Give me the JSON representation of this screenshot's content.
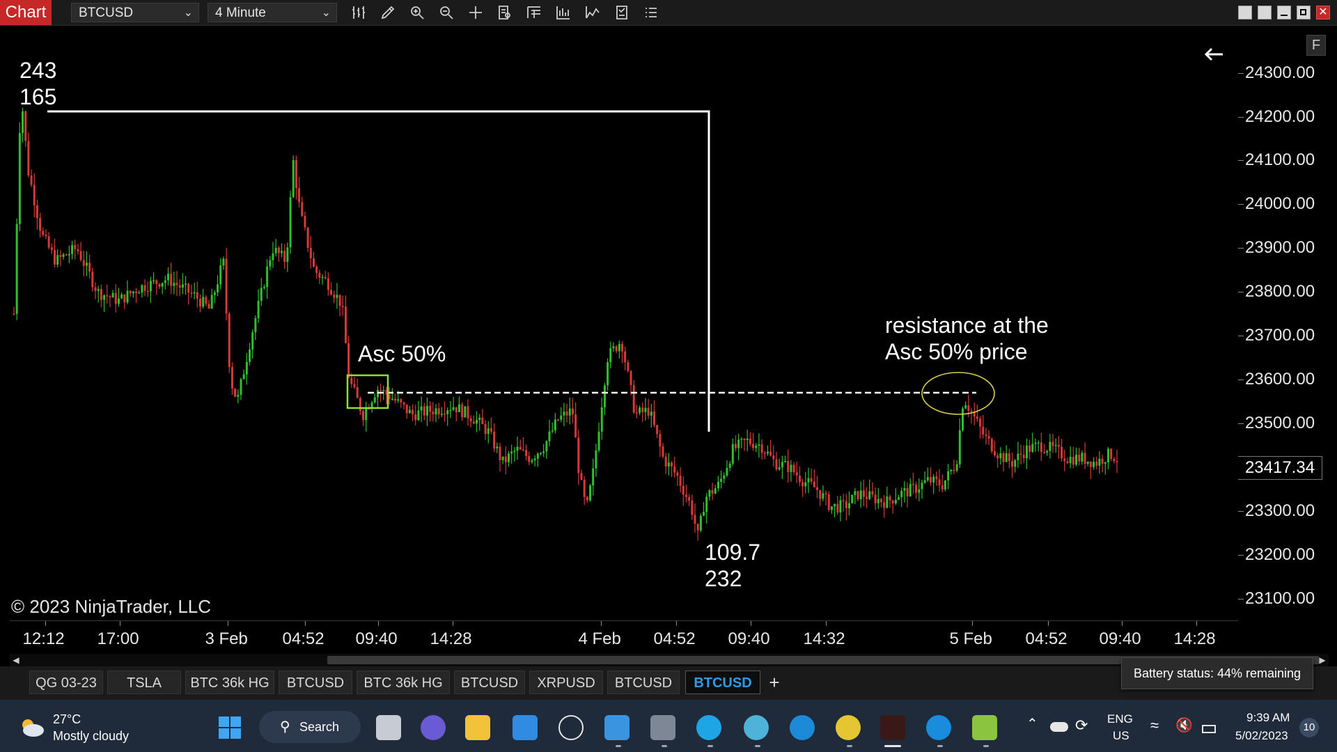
{
  "toolbar": {
    "chart_tab": "Chart",
    "instrument": "BTCUSD",
    "interval": "4 Minute",
    "tools": [
      "bar-type-icon",
      "drawing-tools-icon",
      "zoom-in-icon",
      "zoom-out-icon",
      "crosshair-icon",
      "data-box-icon",
      "chart-trader-icon",
      "indicators-icon",
      "strategies-icon",
      "properties-icon",
      "list-icon"
    ]
  },
  "chart": {
    "watermark": "© 2023 NinjaTrader, LLC",
    "annotations": {
      "top_left_1": "243",
      "top_left_2": "165",
      "asc_label": "Asc 50%",
      "low_1": "109.7",
      "low_2": "232",
      "resistance_1": "resistance at the",
      "resistance_2": "Asc 50% price"
    },
    "current_price": "23417.34",
    "badge": "F",
    "colors": {
      "candle_up": "#2fbf2f",
      "candle_down": "#d43a3a",
      "box": "#8fe030",
      "ellipse": "#d9d248",
      "lines": "#ffffff"
    }
  },
  "chart_data": {
    "type": "candlestick",
    "instrument": "BTCUSD",
    "interval": "4 Minute",
    "price_ticks": [
      "24300.00",
      "24200.00",
      "24100.00",
      "24000.00",
      "23900.00",
      "23800.00",
      "23700.00",
      "23600.00",
      "23500.00",
      "23400.00",
      "23300.00",
      "23200.00",
      "23100.00"
    ],
    "time_ticks": [
      "12:12",
      "17:00",
      "3 Feb",
      "04:52",
      "09:40",
      "14:28",
      "4 Feb",
      "04:52",
      "09:40",
      "14:32",
      "5 Feb",
      "04:52",
      "09:40",
      "14:28"
    ],
    "ylim": [
      23050,
      24390
    ],
    "close_path": [
      [
        0,
        23750
      ],
      [
        1,
        24260
      ],
      [
        2,
        24080
      ],
      [
        4,
        23930
      ],
      [
        6,
        23870
      ],
      [
        9,
        23900
      ],
      [
        12,
        23800
      ],
      [
        15,
        23780
      ],
      [
        18,
        23810
      ],
      [
        22,
        23830
      ],
      [
        26,
        23790
      ],
      [
        28,
        23760
      ],
      [
        30,
        23870
      ],
      [
        31,
        23600
      ],
      [
        32,
        23550
      ],
      [
        34,
        23700
      ],
      [
        37,
        23900
      ],
      [
        39,
        23870
      ],
      [
        40,
        24100
      ],
      [
        41,
        23980
      ],
      [
        43,
        23850
      ],
      [
        45,
        23820
      ],
      [
        47,
        23770
      ],
      [
        48,
        23600
      ],
      [
        50,
        23520
      ],
      [
        52,
        23580
      ],
      [
        54,
        23560
      ],
      [
        57,
        23520
      ],
      [
        60,
        23530
      ],
      [
        63,
        23540
      ],
      [
        66,
        23510
      ],
      [
        68,
        23480
      ],
      [
        70,
        23410
      ],
      [
        72,
        23440
      ],
      [
        74,
        23420
      ],
      [
        76,
        23450
      ],
      [
        78,
        23510
      ],
      [
        80,
        23530
      ],
      [
        81,
        23380
      ],
      [
        82,
        23300
      ],
      [
        83,
        23390
      ],
      [
        85,
        23650
      ],
      [
        87,
        23690
      ],
      [
        89,
        23520
      ],
      [
        91,
        23530
      ],
      [
        93,
        23420
      ],
      [
        95,
        23380
      ],
      [
        97,
        23310
      ],
      [
        98,
        23240
      ],
      [
        99,
        23330
      ],
      [
        101,
        23360
      ],
      [
        103,
        23440
      ],
      [
        105,
        23460
      ],
      [
        107,
        23450
      ],
      [
        109,
        23410
      ],
      [
        111,
        23400
      ],
      [
        113,
        23370
      ],
      [
        115,
        23350
      ],
      [
        117,
        23310
      ],
      [
        119,
        23310
      ],
      [
        121,
        23340
      ],
      [
        123,
        23330
      ],
      [
        125,
        23320
      ],
      [
        127,
        23340
      ],
      [
        129,
        23350
      ],
      [
        131,
        23370
      ],
      [
        133,
        23360
      ],
      [
        135,
        23410
      ],
      [
        136,
        23560
      ],
      [
        137,
        23530
      ],
      [
        139,
        23470
      ],
      [
        141,
        23430
      ],
      [
        143,
        23410
      ],
      [
        145,
        23440
      ],
      [
        147,
        23450
      ],
      [
        149,
        23440
      ],
      [
        151,
        23420
      ],
      [
        153,
        23420
      ],
      [
        155,
        23410
      ],
      [
        157,
        23430
      ],
      [
        158,
        23420
      ]
    ]
  },
  "tabs": {
    "items": [
      "QG 03-23",
      "TSLA",
      "BTC 36k HG",
      "BTCUSD",
      "BTC 36k HG",
      "BTCUSD",
      "XRPUSD",
      "BTCUSD",
      "BTCUSD"
    ],
    "active_index": 8,
    "add": "+"
  },
  "battery_tooltip": "Battery status: 44% remaining",
  "taskbar": {
    "weather_temp": "27°C",
    "weather_desc": "Mostly cloudy",
    "search": "Search",
    "lang_1": "ENG",
    "lang_2": "US",
    "time": "9:39 AM",
    "date": "5/02/2023",
    "notifications": "10"
  }
}
